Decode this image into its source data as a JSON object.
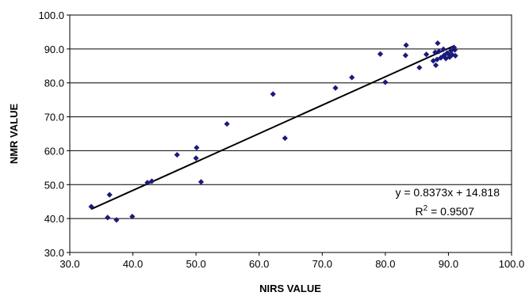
{
  "chart_data": {
    "type": "scatter",
    "title": "",
    "xlabel": "NIRS VALUE",
    "ylabel": "NMR VALUE",
    "xlim": [
      30.0,
      100.0
    ],
    "ylim": [
      30.0,
      100.0
    ],
    "x_ticks": [
      "30.0",
      "40.0",
      "50.0",
      "60.0",
      "70.0",
      "80.0",
      "90.0",
      "100.0"
    ],
    "y_ticks": [
      "30.0",
      "40.0",
      "50.0",
      "60.0",
      "70.0",
      "80.0",
      "90.0",
      "100.0"
    ],
    "horizontal_grid": true,
    "vertical_grid": false,
    "marker_color": "#1a1a7a",
    "line_color": "#000000",
    "series": [
      {
        "points": [
          [
            33.4,
            43.5
          ],
          [
            36.0,
            40.3
          ],
          [
            36.3,
            47.0
          ],
          [
            37.4,
            39.6
          ],
          [
            39.9,
            40.6
          ],
          [
            42.3,
            50.6
          ],
          [
            43.0,
            51.0
          ],
          [
            47.0,
            58.8
          ],
          [
            50.0,
            57.8
          ],
          [
            50.1,
            60.9
          ],
          [
            50.8,
            50.8
          ],
          [
            54.9,
            67.9
          ],
          [
            62.2,
            76.7
          ],
          [
            64.1,
            63.7
          ],
          [
            72.1,
            78.5
          ],
          [
            74.7,
            81.6
          ],
          [
            79.2,
            88.5
          ],
          [
            80.0,
            80.2
          ],
          [
            83.2,
            88.1
          ],
          [
            83.3,
            91.1
          ],
          [
            85.4,
            84.5
          ],
          [
            86.5,
            88.4
          ],
          [
            87.6,
            86.5
          ],
          [
            87.9,
            89.0
          ],
          [
            88.0,
            85.2
          ],
          [
            88.2,
            86.9
          ],
          [
            88.3,
            91.7
          ],
          [
            88.5,
            89.3
          ],
          [
            88.8,
            87.4
          ],
          [
            89.2,
            89.9
          ],
          [
            89.3,
            88.1
          ],
          [
            89.6,
            87.2
          ],
          [
            89.8,
            88.8
          ],
          [
            90.0,
            88.5
          ],
          [
            90.2,
            87.6
          ],
          [
            90.4,
            89.5
          ],
          [
            90.6,
            88.3
          ],
          [
            90.9,
            90.4
          ],
          [
            91.0,
            89.7
          ],
          [
            91.1,
            88.0
          ]
        ]
      }
    ],
    "trendline": {
      "slope": 0.8373,
      "intercept": 14.818,
      "x_range": [
        33.4,
        91.0
      ],
      "equation": "y = 0.8373x + 14.818",
      "r2_prefix": "R",
      "r2_power": "2",
      "r2_value": " = 0.9507"
    }
  }
}
